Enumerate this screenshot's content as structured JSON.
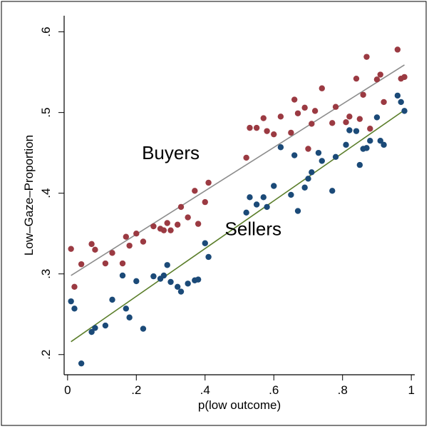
{
  "chart_data": {
    "type": "scatter",
    "title": "",
    "xlabel": "p(low outcome)",
    "ylabel": "Low–Gaze–Proportion",
    "xlim": [
      -0.01,
      1.01
    ],
    "ylim": [
      0.175,
      0.62
    ],
    "xticks": [
      0,
      0.2,
      0.4,
      0.6,
      0.8,
      1
    ],
    "xtick_labels": [
      "0",
      ".2",
      ".4",
      ".6",
      ".8",
      "1"
    ],
    "yticks": [
      0.2,
      0.3,
      0.4,
      0.5,
      0.6
    ],
    "ytick_labels": [
      ".2",
      ".3",
      ".4",
      ".5",
      ".6"
    ],
    "grid": false,
    "annotations": [
      {
        "text": "Buyers",
        "x": 0.3,
        "y": 0.442
      },
      {
        "text": "Sellers",
        "x": 0.54,
        "y": 0.348
      }
    ],
    "series": [
      {
        "color": "#9b3a42",
        "points": [
          [
            0.01,
            0.331
          ],
          [
            0.02,
            0.284
          ],
          [
            0.04,
            0.312
          ],
          [
            0.07,
            0.337
          ],
          [
            0.08,
            0.33
          ],
          [
            0.11,
            0.313
          ],
          [
            0.13,
            0.326
          ],
          [
            0.16,
            0.313
          ],
          [
            0.17,
            0.346
          ],
          [
            0.18,
            0.335
          ],
          [
            0.2,
            0.35
          ],
          [
            0.22,
            0.34
          ],
          [
            0.25,
            0.359
          ],
          [
            0.27,
            0.356
          ],
          [
            0.28,
            0.354
          ],
          [
            0.29,
            0.363
          ],
          [
            0.3,
            0.354
          ],
          [
            0.32,
            0.361
          ],
          [
            0.33,
            0.383
          ],
          [
            0.35,
            0.37
          ],
          [
            0.37,
            0.403
          ],
          [
            0.38,
            0.362
          ],
          [
            0.4,
            0.389
          ],
          [
            0.41,
            0.413
          ],
          [
            0.52,
            0.444
          ],
          [
            0.53,
            0.481
          ],
          [
            0.55,
            0.481
          ],
          [
            0.57,
            0.493
          ],
          [
            0.58,
            0.477
          ],
          [
            0.6,
            0.473
          ],
          [
            0.62,
            0.495
          ],
          [
            0.65,
            0.475
          ],
          [
            0.66,
            0.516
          ],
          [
            0.67,
            0.499
          ],
          [
            0.69,
            0.506
          ],
          [
            0.7,
            0.455
          ],
          [
            0.71,
            0.486
          ],
          [
            0.72,
            0.502
          ],
          [
            0.74,
            0.53
          ],
          [
            0.77,
            0.487
          ],
          [
            0.78,
            0.507
          ],
          [
            0.81,
            0.488
          ],
          [
            0.82,
            0.495
          ],
          [
            0.84,
            0.542
          ],
          [
            0.85,
            0.492
          ],
          [
            0.86,
            0.522
          ],
          [
            0.87,
            0.569
          ],
          [
            0.88,
            0.48
          ],
          [
            0.9,
            0.541
          ],
          [
            0.91,
            0.547
          ],
          [
            0.92,
            0.513
          ],
          [
            0.96,
            0.578
          ],
          [
            0.97,
            0.542
          ],
          [
            0.98,
            0.544
          ]
        ],
        "fit": {
          "x": [
            0.01,
            0.98
          ],
          "y": [
            0.298,
            0.559
          ],
          "color": "#8c8c8c"
        }
      },
      {
        "color": "#1b4a78",
        "points": [
          [
            0.01,
            0.266
          ],
          [
            0.02,
            0.257
          ],
          [
            0.04,
            0.189
          ],
          [
            0.07,
            0.228
          ],
          [
            0.08,
            0.233
          ],
          [
            0.11,
            0.236
          ],
          [
            0.13,
            0.268
          ],
          [
            0.16,
            0.298
          ],
          [
            0.17,
            0.257
          ],
          [
            0.18,
            0.246
          ],
          [
            0.2,
            0.291
          ],
          [
            0.22,
            0.232
          ],
          [
            0.25,
            0.297
          ],
          [
            0.27,
            0.294
          ],
          [
            0.28,
            0.298
          ],
          [
            0.29,
            0.311
          ],
          [
            0.3,
            0.29
          ],
          [
            0.32,
            0.284
          ],
          [
            0.33,
            0.278
          ],
          [
            0.35,
            0.288
          ],
          [
            0.37,
            0.292
          ],
          [
            0.38,
            0.293
          ],
          [
            0.4,
            0.338
          ],
          [
            0.41,
            0.321
          ],
          [
            0.52,
            0.376
          ],
          [
            0.53,
            0.395
          ],
          [
            0.55,
            0.386
          ],
          [
            0.57,
            0.395
          ],
          [
            0.58,
            0.383
          ],
          [
            0.6,
            0.409
          ],
          [
            0.62,
            0.457
          ],
          [
            0.65,
            0.398
          ],
          [
            0.66,
            0.447
          ],
          [
            0.67,
            0.378
          ],
          [
            0.69,
            0.407
          ],
          [
            0.7,
            0.418
          ],
          [
            0.71,
            0.426
          ],
          [
            0.73,
            0.45
          ],
          [
            0.74,
            0.44
          ],
          [
            0.77,
            0.403
          ],
          [
            0.78,
            0.445
          ],
          [
            0.81,
            0.46
          ],
          [
            0.82,
            0.478
          ],
          [
            0.84,
            0.477
          ],
          [
            0.85,
            0.435
          ],
          [
            0.86,
            0.455
          ],
          [
            0.87,
            0.456
          ],
          [
            0.88,
            0.465
          ],
          [
            0.9,
            0.494
          ],
          [
            0.91,
            0.465
          ],
          [
            0.92,
            0.46
          ],
          [
            0.96,
            0.521
          ],
          [
            0.97,
            0.513
          ],
          [
            0.98,
            0.502
          ]
        ],
        "fit": {
          "x": [
            0.01,
            0.98
          ],
          "y": [
            0.216,
            0.503
          ],
          "color": "#5b7e2a"
        }
      }
    ]
  }
}
